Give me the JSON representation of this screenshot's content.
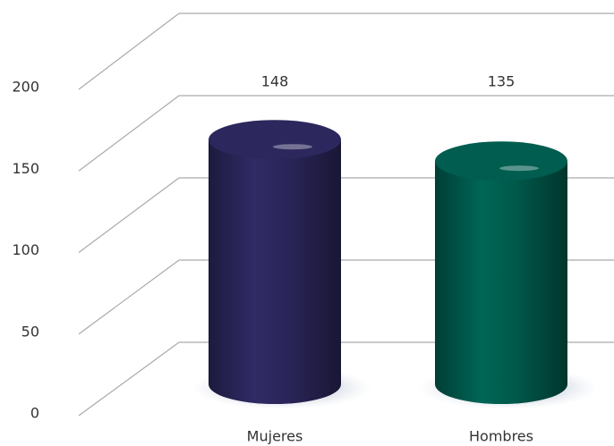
{
  "chart_data": {
    "type": "bar",
    "categories": [
      "Mujeres",
      "Hombres"
    ],
    "values": [
      148,
      135
    ],
    "colors": [
      "#2a2558",
      "#00594b"
    ],
    "ylim": [
      0,
      200
    ],
    "yticks": [
      0,
      50,
      100,
      150,
      200
    ],
    "grid": true
  }
}
